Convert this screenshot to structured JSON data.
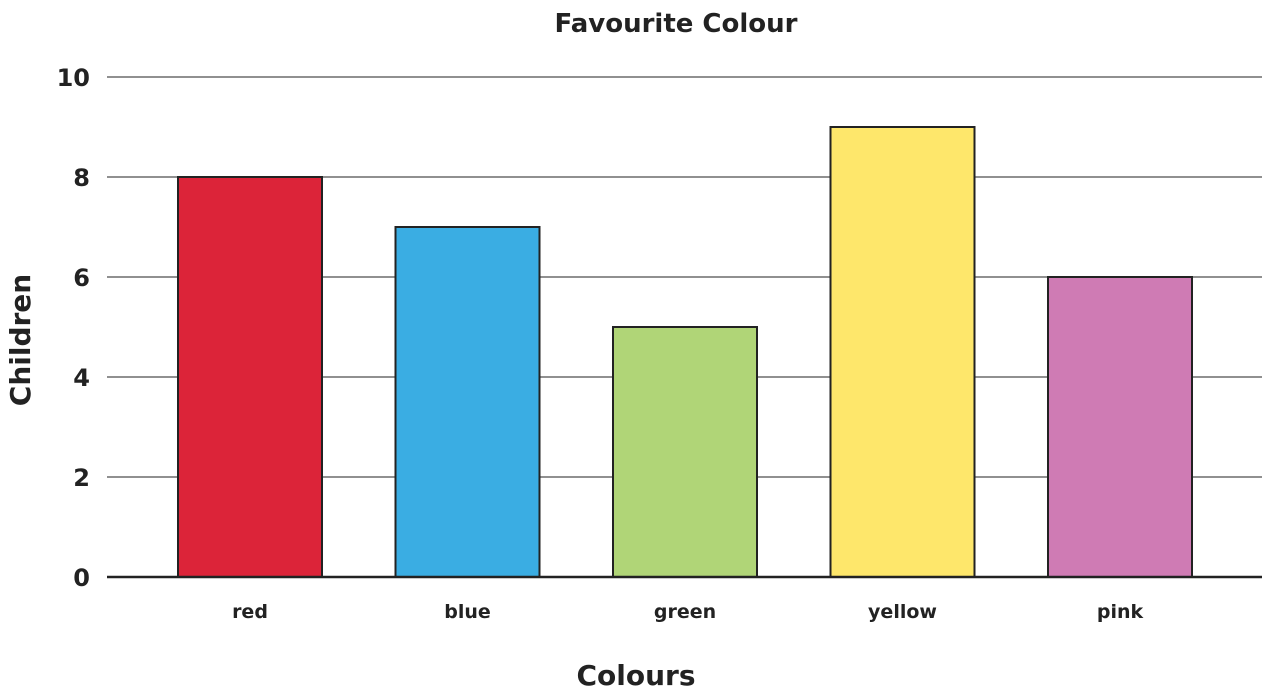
{
  "chart_data": {
    "type": "bar",
    "title": "Favourite Colour",
    "xlabel": "Colours",
    "ylabel": "Children",
    "categories": [
      "red",
      "blue",
      "green",
      "yellow",
      "pink"
    ],
    "values": [
      8,
      7,
      5,
      9,
      6
    ],
    "colors": [
      "#dc2439",
      "#3aade3",
      "#b0d577",
      "#fee76b",
      "#cf7bb4"
    ],
    "ylim": [
      0,
      10
    ],
    "yticks": [
      "0",
      "2",
      "4",
      "6",
      "8",
      "10"
    ],
    "grid": true,
    "legend": "none"
  }
}
